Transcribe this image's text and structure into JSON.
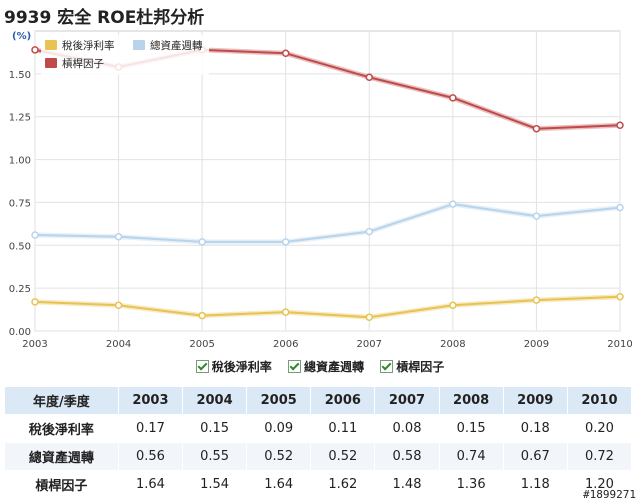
{
  "title": "9939 宏全 ROE杜邦分析",
  "chart_data": {
    "type": "line",
    "title": "9939 宏全 ROE杜邦分析",
    "ylabel": "(%)",
    "xlabel": "",
    "x": [
      "2003",
      "2004",
      "2005",
      "2006",
      "2007",
      "2008",
      "2009",
      "2010"
    ],
    "ylim": [
      0,
      1.75
    ],
    "yticks": [
      "0.00",
      "0.25",
      "0.50",
      "0.75",
      "1.00",
      "1.25",
      "1.50"
    ],
    "grid": true,
    "legend_position": "top-left",
    "series": [
      {
        "name": "稅後淨利率",
        "color": "#e8c252",
        "values": [
          0.17,
          0.15,
          0.09,
          0.11,
          0.08,
          0.15,
          0.18,
          0.2
        ]
      },
      {
        "name": "總資產週轉",
        "color": "#b8d4ec",
        "values": [
          0.56,
          0.55,
          0.52,
          0.52,
          0.58,
          0.74,
          0.67,
          0.72
        ]
      },
      {
        "name": "槓桿因子",
        "color": "#c04a4a",
        "values": [
          1.64,
          1.54,
          1.64,
          1.62,
          1.48,
          1.36,
          1.18,
          1.2
        ]
      }
    ]
  },
  "checkbox_legend": [
    "稅後淨利率",
    "總資產週轉",
    "槓桿因子"
  ],
  "table": {
    "header_label": "年度/季度",
    "years": [
      "2003",
      "2004",
      "2005",
      "2006",
      "2007",
      "2008",
      "2009",
      "2010"
    ],
    "rows": [
      {
        "label": "稅後淨利率",
        "values": [
          "0.17",
          "0.15",
          "0.09",
          "0.11",
          "0.08",
          "0.15",
          "0.18",
          "0.20"
        ]
      },
      {
        "label": "總資產週轉",
        "values": [
          "0.56",
          "0.55",
          "0.52",
          "0.52",
          "0.58",
          "0.74",
          "0.67",
          "0.72"
        ]
      },
      {
        "label": "槓桿因子",
        "values": [
          "1.64",
          "1.54",
          "1.64",
          "1.62",
          "1.48",
          "1.36",
          "1.18",
          "1.20"
        ]
      }
    ]
  },
  "watermark": "#1899271"
}
